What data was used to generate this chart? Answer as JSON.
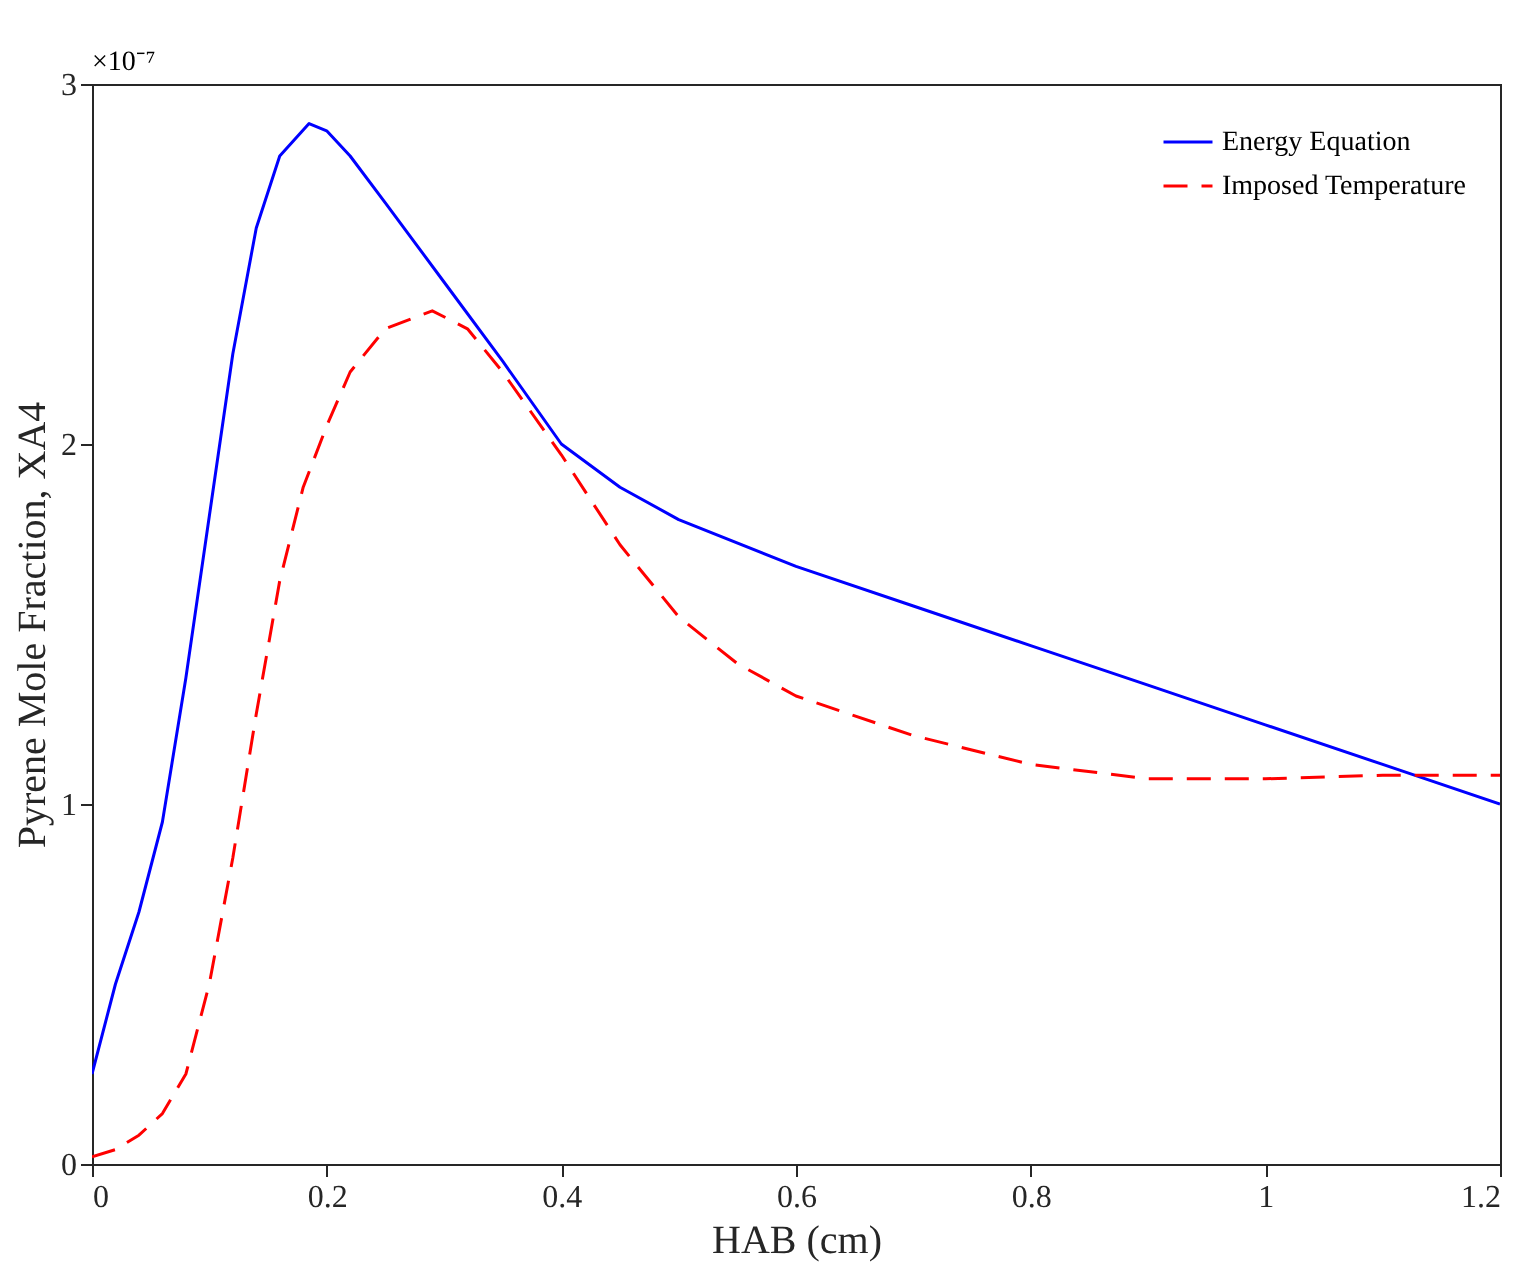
{
  "chart_data": {
    "type": "line",
    "xlabel": "HAB (cm)",
    "ylabel": "Pyrene Mole Fraction, XA4",
    "annotations": [
      "×10⁻⁷"
    ],
    "xlim": [
      0,
      1.2
    ],
    "xticks": [
      0,
      0.2,
      0.4,
      0.6,
      0.8,
      1,
      1.2
    ],
    "ylim": [
      0,
      3
    ],
    "yticks": [
      0,
      1,
      2,
      3
    ],
    "grid": false,
    "legend": "top right",
    "marker": "none",
    "series": [
      {
        "name": "Energy Equation",
        "color": "#0000ff",
        "line_style": "solid",
        "x": [
          0,
          0.02,
          0.04,
          0.06,
          0.08,
          0.1,
          0.12,
          0.14,
          0.16,
          0.185,
          0.2,
          0.22,
          0.25,
          0.3,
          0.35,
          0.4,
          0.45,
          0.5,
          0.6,
          0.7,
          0.8,
          0.9,
          1.0,
          1.1,
          1.2
        ],
        "values": [
          0.25,
          0.5,
          0.7,
          0.95,
          1.35,
          1.8,
          2.25,
          2.6,
          2.8,
          2.89,
          2.87,
          2.8,
          2.67,
          2.45,
          2.23,
          2.0,
          1.88,
          1.79,
          1.66,
          1.55,
          1.44,
          1.33,
          1.22,
          1.11,
          1.0
        ]
      },
      {
        "name": "Imposed Temperature",
        "color": "#ff0000",
        "line_style": "dashed",
        "x": [
          0,
          0.02,
          0.04,
          0.06,
          0.08,
          0.1,
          0.12,
          0.14,
          0.16,
          0.18,
          0.2,
          0.22,
          0.25,
          0.29,
          0.32,
          0.35,
          0.4,
          0.45,
          0.5,
          0.55,
          0.6,
          0.7,
          0.8,
          0.9,
          1.0,
          1.1,
          1.2
        ],
        "values": [
          0.02,
          0.04,
          0.08,
          0.14,
          0.25,
          0.5,
          0.85,
          1.25,
          1.62,
          1.88,
          2.05,
          2.2,
          2.32,
          2.37,
          2.32,
          2.2,
          1.97,
          1.72,
          1.52,
          1.39,
          1.3,
          1.19,
          1.11,
          1.07,
          1.07,
          1.08,
          1.08
        ]
      }
    ]
  }
}
